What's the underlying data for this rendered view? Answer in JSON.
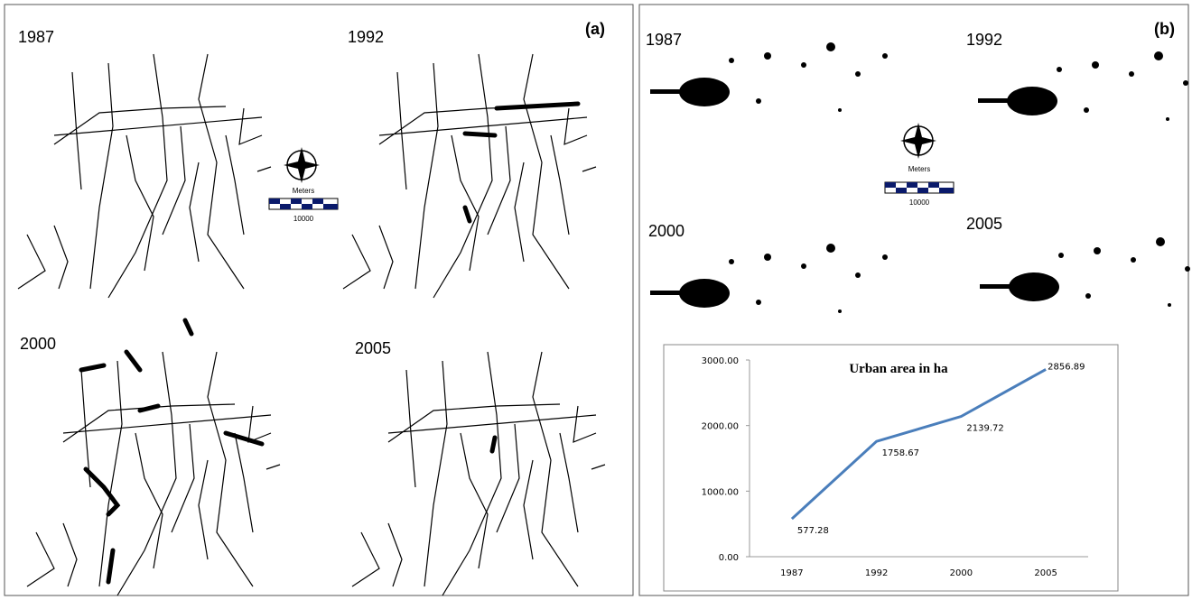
{
  "panels": [
    {
      "label": "(a)",
      "years": [
        "1987",
        "1992",
        "2000",
        "2005"
      ],
      "scale_unit": "Meters",
      "scale_distance": "10000"
    },
    {
      "label": "(b)",
      "years": [
        "1987",
        "1992",
        "2000",
        "2005"
      ],
      "scale_unit": "Meters",
      "scale_distance": "10000"
    }
  ],
  "chart_data": {
    "type": "line",
    "title": "Urban area in ha",
    "categories": [
      "1987",
      "1992",
      "2000",
      "2005"
    ],
    "values": [
      577.28,
      1758.67,
      2139.72,
      2856.89
    ],
    "color": "#4a7ebb",
    "ylim": [
      0,
      3000
    ],
    "yticks": [
      {
        "value": 0,
        "label": "0.00"
      },
      {
        "value": 1000,
        "label": "1000.00"
      },
      {
        "value": 2000,
        "label": "2000.00"
      },
      {
        "value": 3000,
        "label": "3000.00"
      }
    ],
    "grid": false
  }
}
